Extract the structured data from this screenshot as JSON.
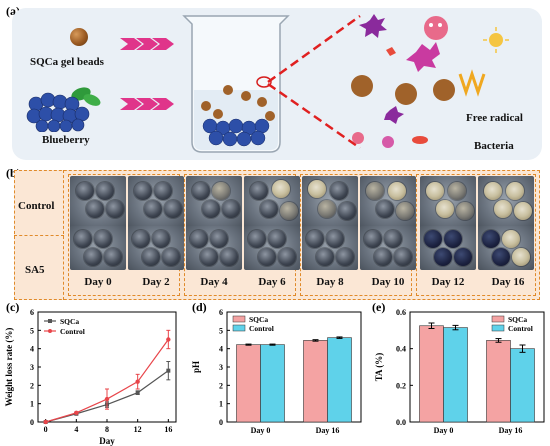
{
  "panel_a": {
    "label": "(a)",
    "bead_label": "SQCa gel beads",
    "blueberry_label": "Blueberry",
    "free_radical_label": "Free radical",
    "bacteria_label": "Bacteria"
  },
  "panel_b": {
    "label": "(b)",
    "row_labels": [
      "Control",
      "SA5"
    ],
    "days": [
      "Day 0",
      "Day 2",
      "Day 4",
      "Day 6",
      "Day 8",
      "Day 10",
      "Day 12",
      "Day 16"
    ]
  },
  "colors": {
    "sqca": "#555555",
    "control_line": "#e8454a",
    "bar_sqca": "#f4a3a3",
    "bar_control": "#5fd2ea",
    "dashed_border": "#e08a2a",
    "panel_b_bg": "#fbe7d5",
    "panel_a_bg": "#eaf0f6"
  },
  "chart_data": [
    {
      "panel": "(c)",
      "type": "line",
      "xlabel": "Day",
      "ylabel": "Weight loss rate (%)",
      "x": [
        0,
        4,
        8,
        12,
        16
      ],
      "xlim": [
        -1,
        17
      ],
      "ylim": [
        0,
        6
      ],
      "yticks": [
        0,
        1,
        2,
        3,
        4,
        5,
        6
      ],
      "series": [
        {
          "name": "SQCa",
          "values": [
            0,
            0.45,
            0.95,
            1.6,
            2.8
          ],
          "errors": [
            0,
            0.05,
            0.15,
            0.1,
            0.5
          ]
        },
        {
          "name": "Control",
          "values": [
            0,
            0.5,
            1.25,
            2.2,
            4.5
          ],
          "errors": [
            0,
            0.05,
            0.55,
            0.4,
            0.5
          ]
        }
      ],
      "legend": "top-left"
    },
    {
      "panel": "(d)",
      "type": "bar",
      "categories": [
        "Day 0",
        "Day 16"
      ],
      "ylabel": "pH",
      "ylim": [
        0,
        6
      ],
      "yticks": [
        0,
        1,
        2,
        3,
        4,
        5,
        6
      ],
      "series": [
        {
          "name": "SQCa",
          "values": [
            4.22,
            4.45
          ],
          "errors": [
            0.03,
            0.04
          ]
        },
        {
          "name": "Control",
          "values": [
            4.22,
            4.6
          ],
          "errors": [
            0.03,
            0.04
          ]
        }
      ],
      "legend": "top-left"
    },
    {
      "panel": "(e)",
      "type": "bar",
      "categories": [
        "Day 0",
        "Day 16"
      ],
      "ylabel": "TA (%)",
      "ylim": [
        0,
        0.6
      ],
      "yticks": [
        0.0,
        0.2,
        0.4,
        0.6
      ],
      "series": [
        {
          "name": "SQCa",
          "values": [
            0.525,
            0.445
          ],
          "errors": [
            0.015,
            0.01
          ]
        },
        {
          "name": "Control",
          "values": [
            0.515,
            0.4
          ],
          "errors": [
            0.012,
            0.02
          ]
        }
      ],
      "legend": "top-right"
    }
  ]
}
